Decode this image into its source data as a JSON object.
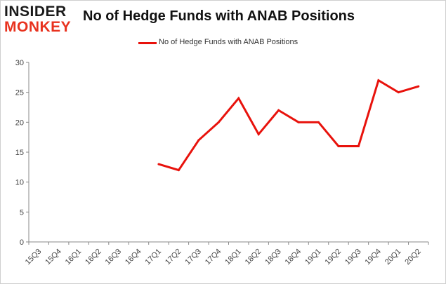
{
  "logo": {
    "line1": "INSIDER",
    "line2": "MONKEY"
  },
  "colors": {
    "line": "#e8120c",
    "axis": "#888888",
    "brand_red": "#e8321e"
  },
  "chart_data": {
    "type": "line",
    "title": "No of Hedge Funds with ANAB Positions",
    "xlabel": "",
    "ylabel": "",
    "categories": [
      "15Q3",
      "15Q4",
      "16Q1",
      "16Q2",
      "16Q3",
      "16Q4",
      "17Q1",
      "17Q2",
      "17Q3",
      "17Q4",
      "18Q1",
      "18Q2",
      "18Q3",
      "18Q4",
      "19Q1",
      "19Q2",
      "19Q3",
      "19Q4",
      "20Q1",
      "20Q2"
    ],
    "series": [
      {
        "name": "No of Hedge Funds with ANAB Positions",
        "values": [
          null,
          null,
          null,
          null,
          null,
          null,
          13,
          12,
          17,
          20,
          24,
          18,
          22,
          20,
          20,
          16,
          16,
          27,
          25,
          26
        ]
      }
    ],
    "ylim": [
      0,
      30
    ],
    "yticks": [
      0,
      5,
      10,
      15,
      20,
      25,
      30
    ],
    "grid": false,
    "legend": "top-center"
  }
}
